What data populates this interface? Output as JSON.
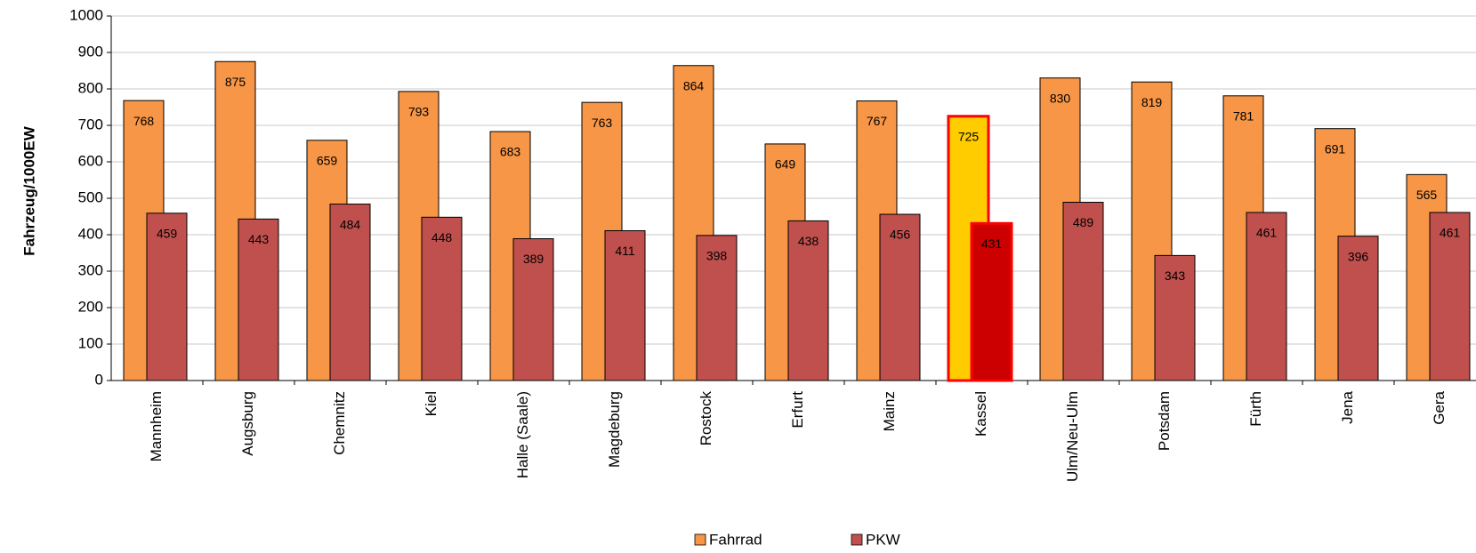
{
  "chart_data": {
    "type": "bar",
    "y_label": "Fahrzeug/1000EW",
    "categories": [
      "Mannheim",
      "Augsburg",
      "Chemnitz",
      "Kiel",
      "Halle (Saale)",
      "Magdeburg",
      "Rostock",
      "Erfurt",
      "Mainz",
      "Kassel",
      "Ulm/Neu-Ulm",
      "Potsdam",
      "Fürth",
      "Jena",
      "Gera"
    ],
    "series": [
      {
        "name": "Fahrrad",
        "color": "#f79646",
        "label_color": "#000000",
        "values": [
          768,
          875,
          659,
          793,
          683,
          763,
          864,
          649,
          767,
          725,
          830,
          819,
          781,
          691,
          565
        ]
      },
      {
        "name": "PKW",
        "color": "#c0504d",
        "label_color": "#ffffff",
        "values": [
          459,
          443,
          484,
          448,
          389,
          411,
          398,
          438,
          456,
          431,
          489,
          343,
          461,
          396,
          461
        ]
      }
    ],
    "highlight": {
      "category": "Kassel",
      "colors": [
        "#ffcc00",
        "#cc0000"
      ],
      "border": "#ff0000"
    },
    "ylim": [
      0,
      1000
    ],
    "yticks": [
      0,
      100,
      200,
      300,
      400,
      500,
      600,
      700,
      800,
      900,
      1000
    ],
    "grid": true,
    "legend": "bottom"
  }
}
